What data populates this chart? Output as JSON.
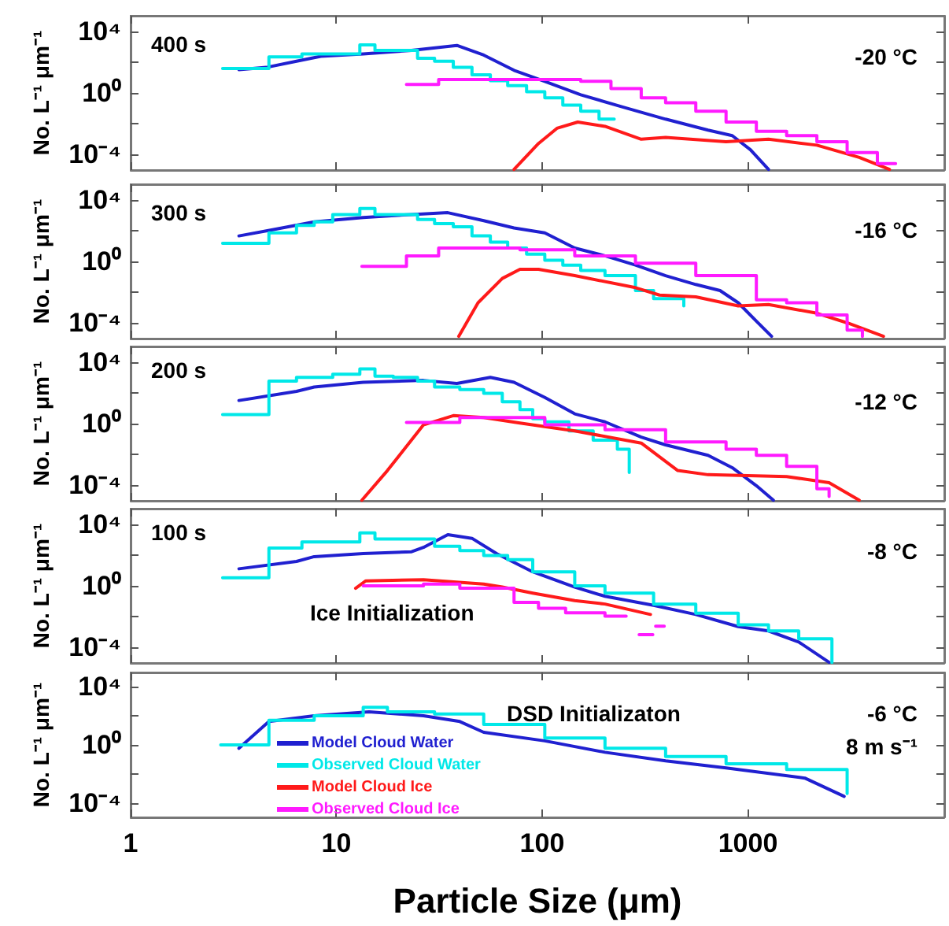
{
  "chart_data": [
    {
      "type": "line",
      "log": "xy",
      "xlim": [
        1,
        9000
      ],
      "ylim": [
        1e-05,
        100000.0
      ],
      "xticks": [
        1,
        10,
        100,
        1000
      ],
      "yticks": [
        {
          "value": 10000,
          "label": "10⁴"
        },
        {
          "value": 100,
          "label": null
        },
        {
          "value": 1,
          "label": "10⁰"
        },
        {
          "value": 0.01,
          "label": null
        },
        {
          "value": 0.0001,
          "label": "10⁻⁴"
        }
      ],
      "tick_labels": "y",
      "ylabel": "No. L⁻¹ μm⁻¹",
      "annotations": [
        "400 s",
        "-20 °C"
      ],
      "series": [
        {
          "type": "line",
          "color": "#2020d0",
          "x": [
            3.36,
            4.56,
            6.4,
            8.4,
            13.5,
            23.2,
            38.5,
            52,
            73,
            103,
            154,
            248,
            398,
            640,
            839,
            1028,
            1259
          ],
          "values": [
            31.6,
            45,
            112,
            234,
            334,
            575,
            1200,
            282,
            29,
            5.6,
            0.76,
            0.12,
            0.02,
            0.0039,
            0.0017,
            0.00021,
            1.1e-05
          ]
        },
        {
          "type": "step",
          "color": "#00e8e8",
          "x": [
            2.8,
            4.7,
            6.8,
            13,
            15.4,
            24.8,
            30,
            37,
            45.6,
            56,
            68,
            84,
            103,
            126,
            154,
            189,
            224
          ],
          "values": [
            38,
            213,
            334,
            1300,
            575,
            178,
            112,
            45,
            15,
            6.2,
            3,
            1.2,
            0.48,
            0.16,
            0.066,
            0.02,
            0.02
          ]
        },
        {
          "type": "line",
          "color": "#ff1a1a",
          "x": [
            73,
            96,
            118,
            149,
            202,
            303,
            398,
            783,
            1259,
            2163,
            3475,
            4875
          ],
          "values": [
            1.1e-05,
            0.00053,
            0.0051,
            0.013,
            0.0068,
            0.001,
            0.0013,
            0.00069,
            0.001,
            0.00041,
            6.6e-05,
            1.1e-05
          ]
        },
        {
          "type": "step",
          "color": "#ff1aff",
          "x": [
            21.9,
            31.4,
            154,
            216,
            303,
            398,
            558,
            783,
            1099,
            1542,
            2163,
            3035,
            4257,
            5220
          ],
          "values": [
            3.5,
            7.4,
            5.6,
            1.9,
            0.48,
            0.23,
            0.066,
            0.013,
            0.0033,
            0.0017,
            0.00069,
            0.000135,
            2.6e-05,
            2.6e-05
          ]
        }
      ]
    },
    {
      "type": "line",
      "log": "xy",
      "xlim": [
        1,
        9000
      ],
      "ylim": [
        1e-05,
        100000.0
      ],
      "xticks": [
        1,
        10,
        100,
        1000
      ],
      "yticks": [
        {
          "value": 10000,
          "label": "10⁴"
        },
        {
          "value": 100,
          "label": null
        },
        {
          "value": 1,
          "label": "10⁰"
        },
        {
          "value": 0.01,
          "label": null
        },
        {
          "value": 0.0001,
          "label": "10⁻⁴"
        }
      ],
      "tick_labels": "y",
      "ylabel": "No. L⁻¹ μm⁻¹",
      "annotations": [
        "300 s",
        "-16 °C"
      ],
      "series": [
        {
          "type": "line",
          "color": "#2020d0",
          "x": [
            3.36,
            4.9,
            7.8,
            13.5,
            23.2,
            34.8,
            52,
            73,
            103,
            144,
            202,
            284,
            398,
            558,
            732,
            897,
            1099,
            1303
          ],
          "values": [
            45,
            112,
            365,
            690,
            1100,
            1440,
            440,
            148,
            71,
            7.4,
            2.3,
            0.58,
            0.12,
            0.032,
            0.013,
            0.0021,
            0.000135,
            1.4e-05
          ]
        },
        {
          "type": "step",
          "color": "#00e8e8",
          "x": [
            2.8,
            4.7,
            6.4,
            7.8,
            9.6,
            13,
            15.4,
            24.8,
            30,
            37,
            45.6,
            56,
            68,
            84,
            103,
            126,
            154,
            202,
            284,
            348,
            488
          ],
          "values": [
            15,
            71,
            213,
            365,
            1100,
            2700,
            1100,
            525,
            282,
            178,
            45,
            18,
            7.4,
            3,
            1.2,
            0.58,
            0.26,
            0.12,
            0.013,
            0.0039,
            0.0013
          ]
        },
        {
          "type": "line",
          "color": "#ff1a1a",
          "x": [
            39.3,
            48.8,
            64,
            78,
            96,
            144,
            284,
            372,
            558,
            897,
            1259,
            2163,
            3035,
            4560
          ],
          "values": [
            1.4e-05,
            0.0021,
            0.079,
            0.31,
            0.31,
            0.12,
            0.02,
            0.0066,
            0.0051,
            0.0013,
            0.0016,
            0.00044,
            0.000105,
            1.4e-05
          ]
        },
        {
          "type": "step",
          "color": "#ff1aff",
          "x": [
            13.3,
            21.9,
            31.4,
            78,
            144,
            284,
            558,
            1099,
            1542,
            2163,
            3035,
            3600
          ],
          "values": [
            0.48,
            2.3,
            7.4,
            5.6,
            2.3,
            0.76,
            0.12,
            0.0033,
            0.0021,
            0.00034,
            3.5e-05,
            1.4e-05
          ]
        }
      ]
    },
    {
      "type": "line",
      "log": "xy",
      "xlim": [
        1,
        9000
      ],
      "ylim": [
        1e-05,
        100000.0
      ],
      "xticks": [
        1,
        10,
        100,
        1000
      ],
      "yticks": [
        {
          "value": 10000,
          "label": "10⁴"
        },
        {
          "value": 100,
          "label": null
        },
        {
          "value": 1,
          "label": "10⁰"
        },
        {
          "value": 0.01,
          "label": null
        },
        {
          "value": 0.0001,
          "label": "10⁻⁴"
        }
      ],
      "tick_labels": "y",
      "ylabel": "No. L⁻¹ μm⁻¹",
      "annotations": [
        "200 s",
        "-12 °C"
      ],
      "series": [
        {
          "type": "line",
          "color": "#2020d0",
          "x": [
            3.36,
            6.4,
            7.8,
            13.5,
            26.5,
            38.5,
            56,
            73,
            103,
            144,
            202,
            303,
            398,
            640,
            839,
            1099,
            1330
          ],
          "values": [
            31.6,
            123,
            234,
            480,
            631,
            398,
            1000,
            480,
            50,
            4.3,
            1.3,
            0.135,
            0.042,
            0.0089,
            0.0014,
            9.5e-05,
            1.1e-05
          ]
        },
        {
          "type": "step",
          "color": "#00e8e8",
          "x": [
            2.8,
            4.7,
            6.4,
            9.6,
            13,
            15.4,
            18.9,
            24.8,
            30,
            39.8,
            52,
            64,
            78,
            90,
            103,
            135,
            177,
            232,
            265
          ],
          "values": [
            3.9,
            575,
            1000,
            1580,
            3550,
            1200,
            1000,
            575,
            234,
            162,
            93,
            26,
            8.1,
            2.1,
            1.3,
            0.34,
            0.086,
            0.022,
            0.00069
          ]
        },
        {
          "type": "line",
          "color": "#ff1a1a",
          "x": [
            13.3,
            17.7,
            26.5,
            37,
            52,
            78,
            144,
            303,
            456,
            640,
            1542,
            2480,
            3475
          ],
          "values": [
            1.1e-05,
            0.00091,
            0.83,
            3.3,
            2.5,
            1.1,
            0.34,
            0.055,
            0.00091,
            0.00049,
            0.00037,
            0.00015,
            1.1e-05
          ]
        },
        {
          "type": "step",
          "color": "#ff1aff",
          "x": [
            21.9,
            39.8,
            103,
            202,
            398,
            783,
            1099,
            1542,
            2163,
            2480
          ],
          "values": [
            1.2,
            2.5,
            0.83,
            0.4,
            0.066,
            0.022,
            0.0089,
            0.0017,
            6e-05,
            1.9e-05
          ]
        }
      ]
    },
    {
      "type": "line",
      "log": "xy",
      "xlim": [
        1,
        9000
      ],
      "ylim": [
        1e-05,
        100000.0
      ],
      "xticks": [
        1,
        10,
        100,
        1000
      ],
      "yticks": [
        {
          "value": 10000,
          "label": "10⁴"
        },
        {
          "value": 100,
          "label": null
        },
        {
          "value": 1,
          "label": "10⁰"
        },
        {
          "value": 0.01,
          "label": null
        },
        {
          "value": 0.0001,
          "label": "10⁻⁴"
        }
      ],
      "tick_labels": "y",
      "ylabel": "No. L⁻¹ μm⁻¹",
      "annotations": [
        "100 s",
        "-8 °C",
        "Ice Initialization"
      ],
      "series": [
        {
          "type": "line",
          "color": "#2020d0",
          "x": [
            3.36,
            6.4,
            7.8,
            13.5,
            23.2,
            26.5,
            34.8,
            45.6,
            60,
            90,
            144,
            202,
            348,
            558,
            897,
            1259,
            1766,
            2480
          ],
          "values": [
            12.7,
            38,
            78,
            123,
            162,
            308,
            2050,
            1200,
            123,
            8.1,
            0.83,
            0.21,
            0.055,
            0.014,
            0.0023,
            0.0012,
            0.00023,
            1.1e-05
          ]
        },
        {
          "type": "step",
          "color": "#00e8e8",
          "x": [
            2.8,
            4.7,
            6.8,
            13,
            15.4,
            30,
            39.8,
            52,
            68,
            90,
            144,
            202,
            348,
            558,
            897,
            1259,
            1766,
            2560
          ],
          "values": [
            3.3,
            282,
            690,
            2700,
            1100,
            365,
            194,
            93,
            50,
            8.1,
            1,
            0.34,
            0.066,
            0.017,
            0.003,
            0.0012,
            0.00037,
            1.1e-05
          ]
        },
        {
          "type": "line",
          "color": "#ff1a1a",
          "x": [
            12.4,
            13.9,
            26.5,
            52,
            64,
            90,
            144,
            202,
            336
          ],
          "values": [
            0.7,
            2.1,
            2.5,
            1.3,
            0.83,
            0.34,
            0.11,
            0.066,
            0.014
          ]
        },
        {
          "type": "step",
          "color": "#ff1aff",
          "x": [
            13.5,
            26.5,
            39.8,
            73,
            96,
            130,
            202,
            256
          ],
          "values": [
            1,
            1.3,
            0.7,
            0.086,
            0.035,
            0.018,
            0.011,
            0.011
          ]
        },
        {
          "type": "line",
          "color": "#ff1aff",
          "x": [
            296,
            345,
            350,
            356,
            392
          ],
          "values": [
            0.00069,
            0.00069,
            null,
            0.0024,
            0.0024
          ]
        }
      ]
    },
    {
      "type": "line",
      "log": "xy",
      "xlim": [
        1,
        9000
      ],
      "ylim": [
        1e-05,
        100000.0
      ],
      "xticks": [
        1,
        10,
        100,
        1000
      ],
      "yticks": [
        {
          "value": 10000,
          "label": "10⁴"
        },
        {
          "value": 100,
          "label": null
        },
        {
          "value": 1,
          "label": "10⁰"
        },
        {
          "value": 0.01,
          "label": null
        },
        {
          "value": 0.0001,
          "label": "10⁻⁴"
        }
      ],
      "xlabel": "Particle Size (μm)",
      "ylabel": "No. L⁻¹ μm⁻¹",
      "legend": "left",
      "annotations": [
        "DSD Initializaton",
        "-6 °C",
        "8 m s⁻¹"
      ],
      "series": [
        {
          "type": "line",
          "name": "Model Cloud Water",
          "color": "#2020d0",
          "x": [
            3.36,
            4.7,
            7.8,
            14.4,
            26.5,
            39.8,
            52,
            103,
            202,
            398,
            783,
            1890,
            2935
          ],
          "values": [
            0.58,
            41,
            103,
            194,
            103,
            41,
            7.4,
            1.9,
            0.31,
            0.079,
            0.026,
            0.0051,
            0.00028
          ]
        },
        {
          "type": "step",
          "name": "Observed Cloud Water",
          "color": "#00e8e8",
          "x": [
            2.74,
            4.7,
            7.8,
            13.5,
            17.7,
            30,
            52,
            103,
            202,
            398,
            783,
            1542,
            3035
          ],
          "values": [
            1,
            50,
            103,
            398,
            194,
            135,
            26,
            3,
            0.58,
            0.16,
            0.05,
            0.02,
            0.00044
          ]
        },
        {
          "type": "line",
          "name": "Model Cloud Ice",
          "color": "#ff1a1a"
        },
        {
          "type": "step",
          "name": "Observed Cloud Ice",
          "color": "#ff1aff"
        }
      ]
    }
  ]
}
